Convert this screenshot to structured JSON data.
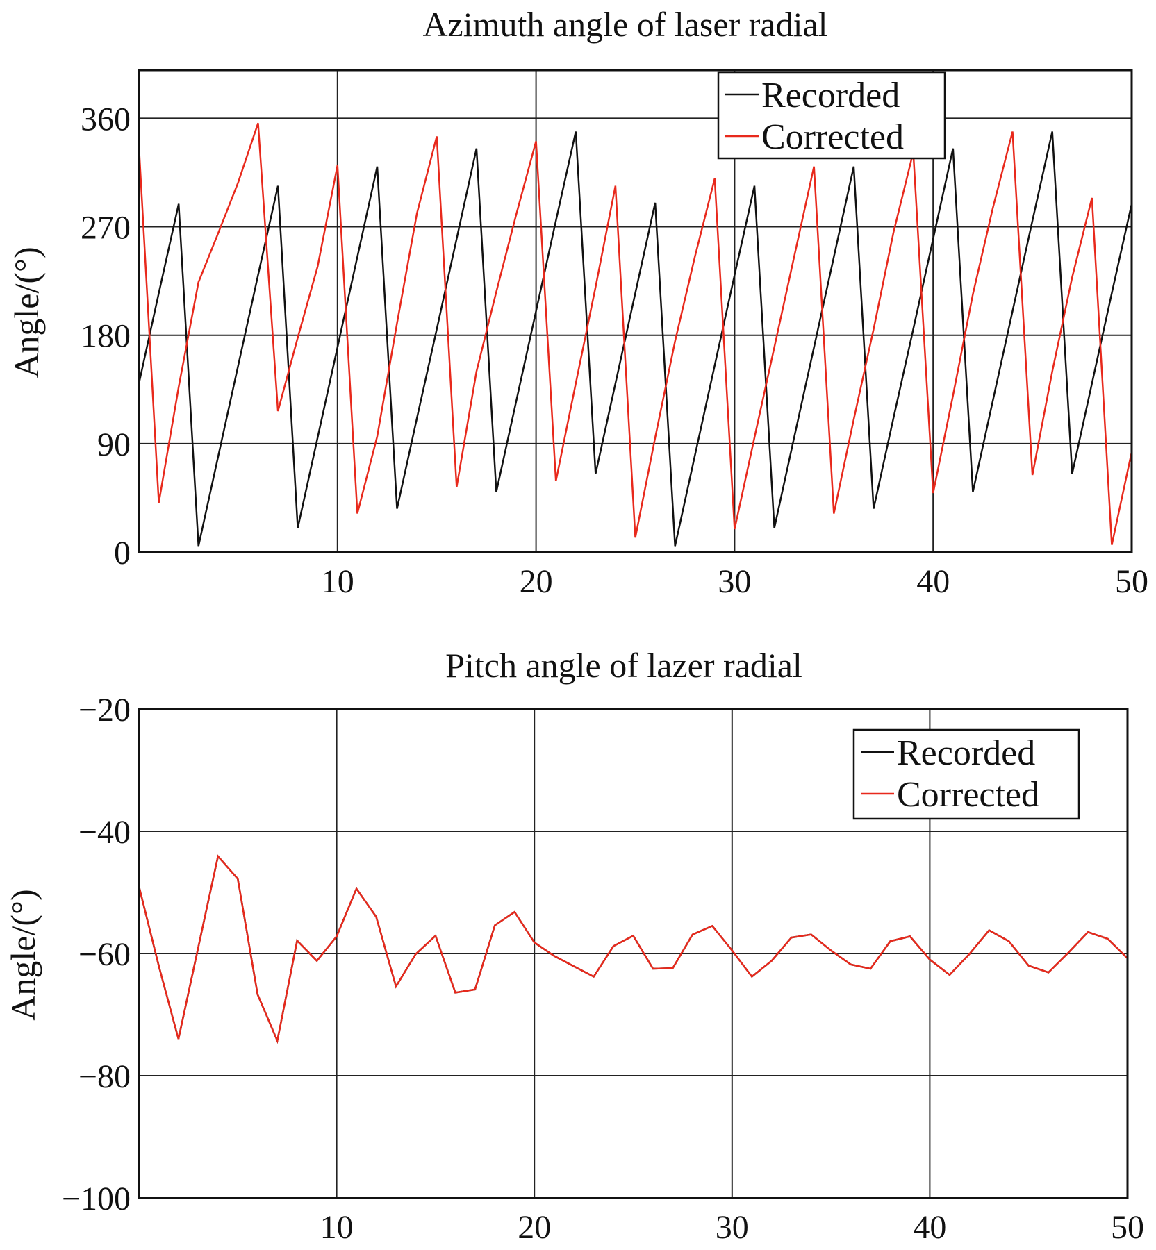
{
  "colors": {
    "recorded": "#111111",
    "corrected": "#e8291c"
  },
  "chart_data": [
    {
      "type": "line",
      "title": "Azimuth angle of laser radial",
      "xlabel": "",
      "ylabel": "Angle/(°)",
      "xlim": [
        0,
        50
      ],
      "ylim": [
        0,
        400
      ],
      "grid": true,
      "legend": "top-right",
      "xticks": [
        10,
        20,
        30,
        40,
        50
      ],
      "xtick_labels": [
        "10",
        "20",
        "30",
        "40",
        "50"
      ],
      "yticks": [
        0,
        90,
        180,
        270,
        360
      ],
      "ytick_labels": [
        "0",
        "90",
        "180",
        "270",
        "360"
      ],
      "x": [
        0,
        1,
        2,
        3,
        4,
        5,
        6,
        7,
        8,
        9,
        10,
        11,
        12,
        13,
        14,
        15,
        16,
        17,
        18,
        19,
        20,
        21,
        22,
        23,
        24,
        25,
        26,
        27,
        28,
        29,
        30,
        31,
        32,
        33,
        34,
        35,
        36,
        37,
        38,
        39,
        40,
        41,
        42,
        43,
        44,
        45,
        46,
        47,
        48,
        49,
        50
      ],
      "series": [
        {
          "name": "Recorded",
          "color_key": "recorded",
          "values": [
            140,
            215,
            289,
            5,
            80,
            155,
            230,
            304,
            20,
            95,
            170,
            245,
            320,
            36,
            111,
            185,
            260,
            335,
            50,
            125,
            200,
            275,
            349,
            65,
            140,
            215,
            290,
            5,
            80,
            155,
            230,
            304,
            20,
            95,
            170,
            245,
            320,
            36,
            111,
            185,
            260,
            335,
            50,
            125,
            200,
            275,
            349,
            65,
            140,
            215,
            289
          ]
        },
        {
          "name": "Corrected",
          "color_key": "corrected",
          "values": [
            337,
            41,
            137,
            224,
            265,
            307,
            356,
            117,
            178,
            237,
            321,
            32,
            96,
            190,
            281,
            345,
            54,
            150,
            216,
            280,
            341,
            59,
            140,
            220,
            304,
            12,
            95,
            175,
            245,
            310,
            19,
            95,
            170,
            245,
            320,
            32,
            110,
            185,
            265,
            332,
            49,
            130,
            214,
            285,
            349,
            64,
            150,
            228,
            294,
            6,
            83
          ]
        }
      ]
    },
    {
      "type": "line",
      "title": "Pitch angle of lazer radial",
      "xlabel": "",
      "ylabel": "Angle/(°)",
      "xlim": [
        0,
        50
      ],
      "ylim": [
        -100,
        -20
      ],
      "grid": true,
      "legend": "top-right",
      "xticks": [
        10,
        20,
        30,
        40,
        50
      ],
      "xtick_labels": [
        "10",
        "20",
        "30",
        "40",
        "50"
      ],
      "yticks": [
        -100,
        -80,
        -60,
        -40,
        -20
      ],
      "ytick_labels": [
        "−100",
        "−80",
        "−60",
        "−40",
        "−20"
      ],
      "x": [
        0,
        1,
        2,
        3,
        4,
        5,
        6,
        7,
        8,
        9,
        10,
        11,
        12,
        13,
        14,
        15,
        16,
        17,
        18,
        19,
        20,
        21,
        22,
        23,
        24,
        25,
        26,
        27,
        28,
        29,
        30,
        31,
        32,
        33,
        34,
        35,
        36,
        37,
        38,
        39,
        40,
        41,
        42,
        43,
        44,
        45,
        46,
        47,
        48,
        49,
        50
      ],
      "series": [
        {
          "name": "Recorded",
          "color_key": "recorded",
          "values": [
            -49,
            -62,
            -74,
            -59,
            -44.1,
            -47.8,
            -66.7,
            -74.3,
            -57.9,
            -61.2,
            -57.2,
            -49.4,
            -54,
            -65.4,
            -60.1,
            -57.1,
            -66.4,
            -65.9,
            -55.4,
            -53.2,
            -58.2,
            -60.4,
            -62.1,
            -63.8,
            -58.8,
            -57.1,
            -62.5,
            -62.4,
            -56.9,
            -55.5,
            -59.5,
            -63.8,
            -61.2,
            -57.4,
            -56.9,
            -59.5,
            -61.8,
            -62.5,
            -58,
            -57.2,
            -61,
            -63.5,
            -60.1,
            -56.2,
            -58,
            -62,
            -63.1,
            -59.9,
            -56.5,
            -57.6,
            -60.8
          ]
        },
        {
          "name": "Corrected",
          "color_key": "corrected",
          "values": [
            -49,
            -62,
            -74,
            -59,
            -44.1,
            -47.8,
            -66.7,
            -74.3,
            -57.9,
            -61.2,
            -57.2,
            -49.4,
            -54,
            -65.4,
            -60.1,
            -57.1,
            -66.4,
            -65.9,
            -55.4,
            -53.2,
            -58.2,
            -60.4,
            -62.1,
            -63.8,
            -58.8,
            -57.1,
            -62.5,
            -62.4,
            -56.9,
            -55.5,
            -59.5,
            -63.8,
            -61.2,
            -57.4,
            -56.9,
            -59.5,
            -61.8,
            -62.5,
            -58,
            -57.2,
            -61,
            -63.5,
            -60.1,
            -56.2,
            -58,
            -62,
            -63.1,
            -59.9,
            -56.5,
            -57.6,
            -60.8
          ]
        }
      ]
    }
  ]
}
